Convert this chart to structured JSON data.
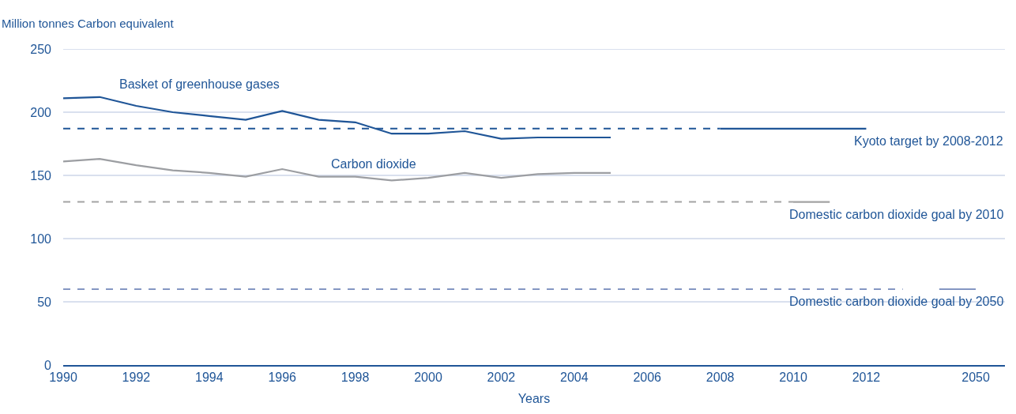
{
  "chart_data": {
    "type": "line",
    "xlabel": "Years",
    "ylabel": "Million tonnes Carbon equivalent",
    "categories": [
      "1990",
      null,
      "1992",
      null,
      "1994",
      null,
      "1996",
      null,
      "1998",
      null,
      "2000",
      null,
      "2002",
      null,
      "2004",
      null,
      "2006",
      null,
      "2008",
      null,
      "2010",
      null,
      "2012",
      null,
      null,
      "2050"
    ],
    "series": [
      {
        "name": "Basket of greenhouse gases",
        "color": "#1f5597",
        "values": [
          211,
          212,
          205,
          200,
          197,
          194,
          201,
          194,
          192,
          183,
          183,
          185,
          179,
          180,
          180,
          180,
          null,
          null,
          null,
          null,
          null,
          null,
          null,
          null,
          null,
          null
        ]
      },
      {
        "name": "Carbon dioxide",
        "color": "#9c9ea2",
        "values": [
          161,
          163,
          158,
          154,
          152,
          149,
          155,
          149,
          149,
          146,
          148,
          152,
          148,
          151,
          152,
          152,
          null,
          null,
          null,
          null,
          null,
          null,
          null,
          null,
          null,
          null
        ]
      },
      {
        "color": "#1f5597",
        "line_style": "dashed",
        "values": [
          187,
          187,
          187,
          187,
          187,
          187,
          187,
          187,
          187,
          187,
          187,
          187,
          187,
          187,
          187,
          187,
          187,
          187,
          187,
          null,
          null,
          null,
          null,
          null,
          null,
          null
        ]
      },
      {
        "name": "Kyoto target by 2008-2012",
        "color": "#1f5597",
        "values": [
          null,
          null,
          null,
          null,
          null,
          null,
          null,
          null,
          null,
          null,
          null,
          null,
          null,
          null,
          null,
          null,
          null,
          null,
          187,
          187,
          187,
          187,
          187,
          null,
          null,
          null
        ]
      },
      {
        "color": "#a3a3a3",
        "line_style": "dashed",
        "values": [
          129,
          129,
          129,
          129,
          129,
          129,
          129,
          129,
          129,
          129,
          129,
          129,
          129,
          129,
          129,
          129,
          129,
          129,
          129,
          129,
          129,
          null,
          null,
          null,
          null,
          null
        ]
      },
      {
        "name": "Domestic carbon dioxide goal by 2010",
        "color": "#a3a3a3",
        "values": [
          null,
          null,
          null,
          null,
          null,
          null,
          null,
          null,
          null,
          null,
          null,
          null,
          null,
          null,
          null,
          null,
          null,
          null,
          null,
          null,
          129,
          129,
          null,
          null,
          null,
          null
        ]
      },
      {
        "color": "#8496c2",
        "line_style": "dashed",
        "values": [
          60,
          60,
          60,
          60,
          60,
          60,
          60,
          60,
          60,
          60,
          60,
          60,
          60,
          60,
          60,
          60,
          60,
          60,
          60,
          60,
          60,
          60,
          60,
          60,
          null,
          null
        ]
      },
      {
        "name": "Domestic carbon dioxide goal by 2050",
        "color": "#8496c2",
        "values": [
          null,
          null,
          null,
          null,
          null,
          null,
          null,
          null,
          null,
          null,
          null,
          null,
          null,
          null,
          null,
          null,
          null,
          null,
          null,
          null,
          null,
          null,
          null,
          null,
          60,
          60
        ]
      }
    ],
    "ylim": [
      0,
      250
    ],
    "yticks": [
      0,
      50,
      100,
      150,
      200,
      250
    ],
    "grid": "y",
    "legend": false
  }
}
